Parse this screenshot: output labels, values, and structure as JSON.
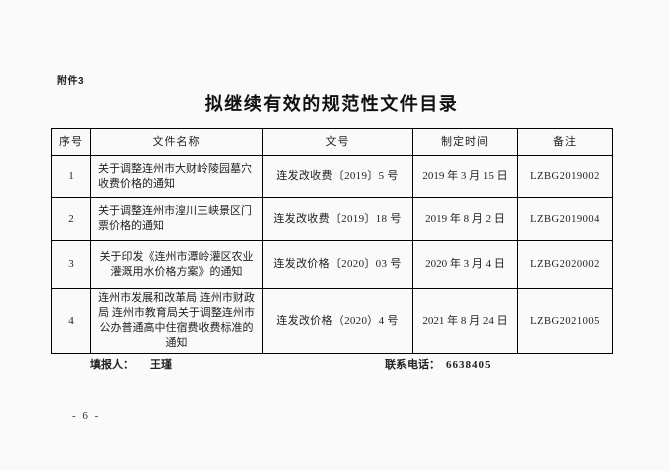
{
  "page": {
    "attachment_label": "附件3",
    "title": "拟继续有效的规范性文件目录",
    "page_number": "- 6 -"
  },
  "table": {
    "headers": [
      "序号",
      "文件名称",
      "文号",
      "制定时间",
      "备注"
    ],
    "rows": [
      {
        "no": "1",
        "name": "关于调整连州市大财岭陵园墓穴收费价格的通知",
        "doc_no": "连发改收费〔2019〕5 号",
        "date": "2019 年 3 月 15 日",
        "remark": "LZBG2019002"
      },
      {
        "no": "2",
        "name": "关于调整连州市湟川三峡景区门票价格的通知",
        "doc_no": "连发改收费〔2019〕18 号",
        "date": "2019 年 8 月 2 日",
        "remark": "LZBG2019004"
      },
      {
        "no": "3",
        "name": "关于印发《连州市潭岭灌区农业灌溉用水价格方案》的通知",
        "doc_no": "连发改价格〔2020〕03 号",
        "date": "2020 年 3 月 4 日",
        "remark": "LZBG2020002"
      },
      {
        "no": "4",
        "name": "连州市发展和改革局 连州市财政局 连州市教育局关于调整连州市公办普通高中住宿费收费标准的通知",
        "doc_no": "连发改价格（2020）4 号",
        "date": "2021 年 8 月 24 日",
        "remark": "LZBG2021005"
      }
    ]
  },
  "footer": {
    "filler_label": "填报人：",
    "filler_name": "王瑾",
    "phone_label": "联系电话：",
    "phone_number": "6638405"
  }
}
